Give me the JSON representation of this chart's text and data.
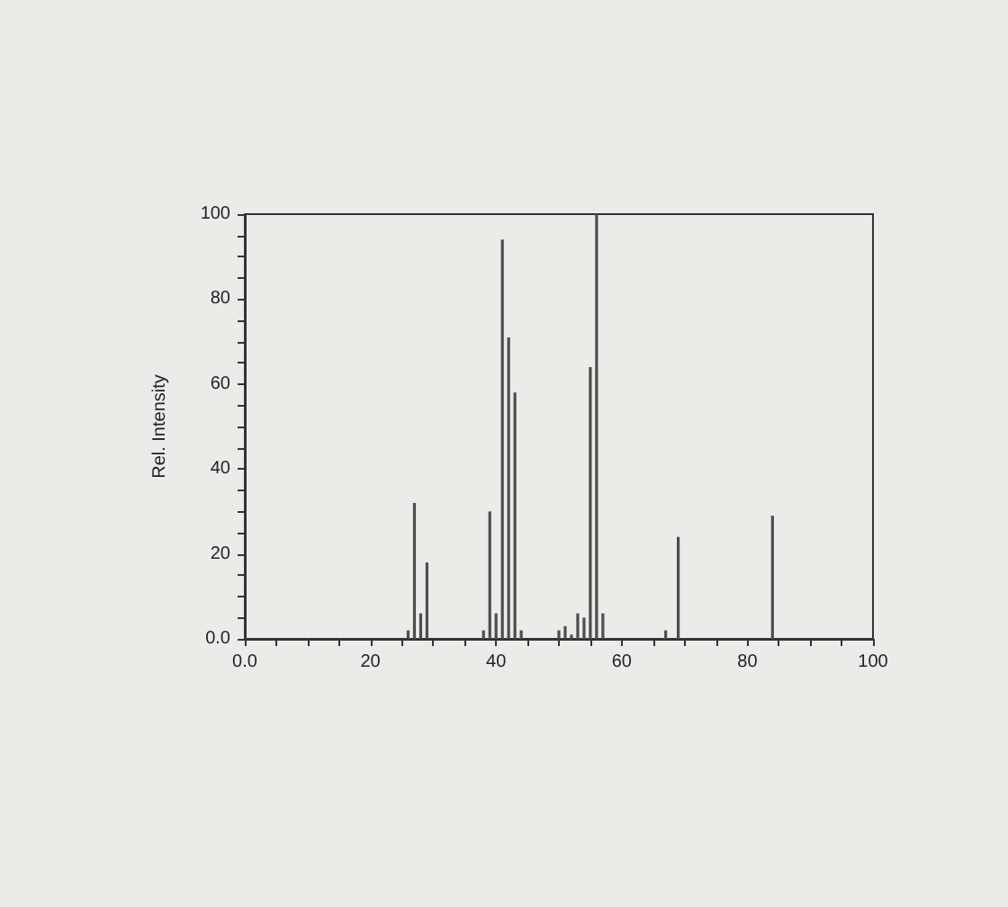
{
  "chart_data": {
    "type": "bar",
    "ylabel": "Rel. Intensity",
    "x": [
      26,
      27,
      28,
      29,
      38,
      39,
      40,
      41,
      42,
      43,
      44,
      50,
      51,
      52,
      53,
      54,
      55,
      56,
      57,
      67,
      69,
      84
    ],
    "values": [
      2,
      32,
      6,
      18,
      2,
      30,
      6,
      94,
      71,
      58,
      2,
      2,
      3,
      1,
      6,
      5,
      64,
      100,
      6,
      2,
      24,
      29
    ],
    "color": "#4d4d4d",
    "xlim": [
      0,
      100
    ],
    "ylim": [
      0,
      100
    ],
    "xticks": [
      {
        "value": 0,
        "label": "0.0"
      },
      {
        "value": 5,
        "label": null
      },
      {
        "value": 10,
        "label": null
      },
      {
        "value": 15,
        "label": null
      },
      20,
      {
        "value": 25,
        "label": null
      },
      {
        "value": 30,
        "label": null
      },
      {
        "value": 35,
        "label": null
      },
      40,
      {
        "value": 45,
        "label": null
      },
      {
        "value": 50,
        "label": null
      },
      {
        "value": 55,
        "label": null
      },
      60,
      {
        "value": 65,
        "label": null
      },
      {
        "value": 70,
        "label": null
      },
      {
        "value": 75,
        "label": null
      },
      80,
      {
        "value": 85,
        "label": null
      },
      {
        "value": 90,
        "label": null
      },
      {
        "value": 95,
        "label": null
      },
      100
    ],
    "yticks": [
      {
        "value": 0,
        "label": "0.0"
      },
      {
        "value": 5,
        "label": null
      },
      {
        "value": 10,
        "label": null
      },
      {
        "value": 15,
        "label": null
      },
      20,
      {
        "value": 25,
        "label": null
      },
      {
        "value": 30,
        "label": null
      },
      {
        "value": 35,
        "label": null
      },
      40,
      {
        "value": 45,
        "label": null
      },
      {
        "value": 50,
        "label": null
      },
      {
        "value": 55,
        "label": null
      },
      60,
      {
        "value": 65,
        "label": null
      },
      {
        "value": 70,
        "label": null
      },
      {
        "value": 75,
        "label": null
      },
      80,
      {
        "value": 85,
        "label": null
      },
      {
        "value": 90,
        "label": null
      },
      {
        "value": 95,
        "label": null
      },
      100
    ]
  }
}
